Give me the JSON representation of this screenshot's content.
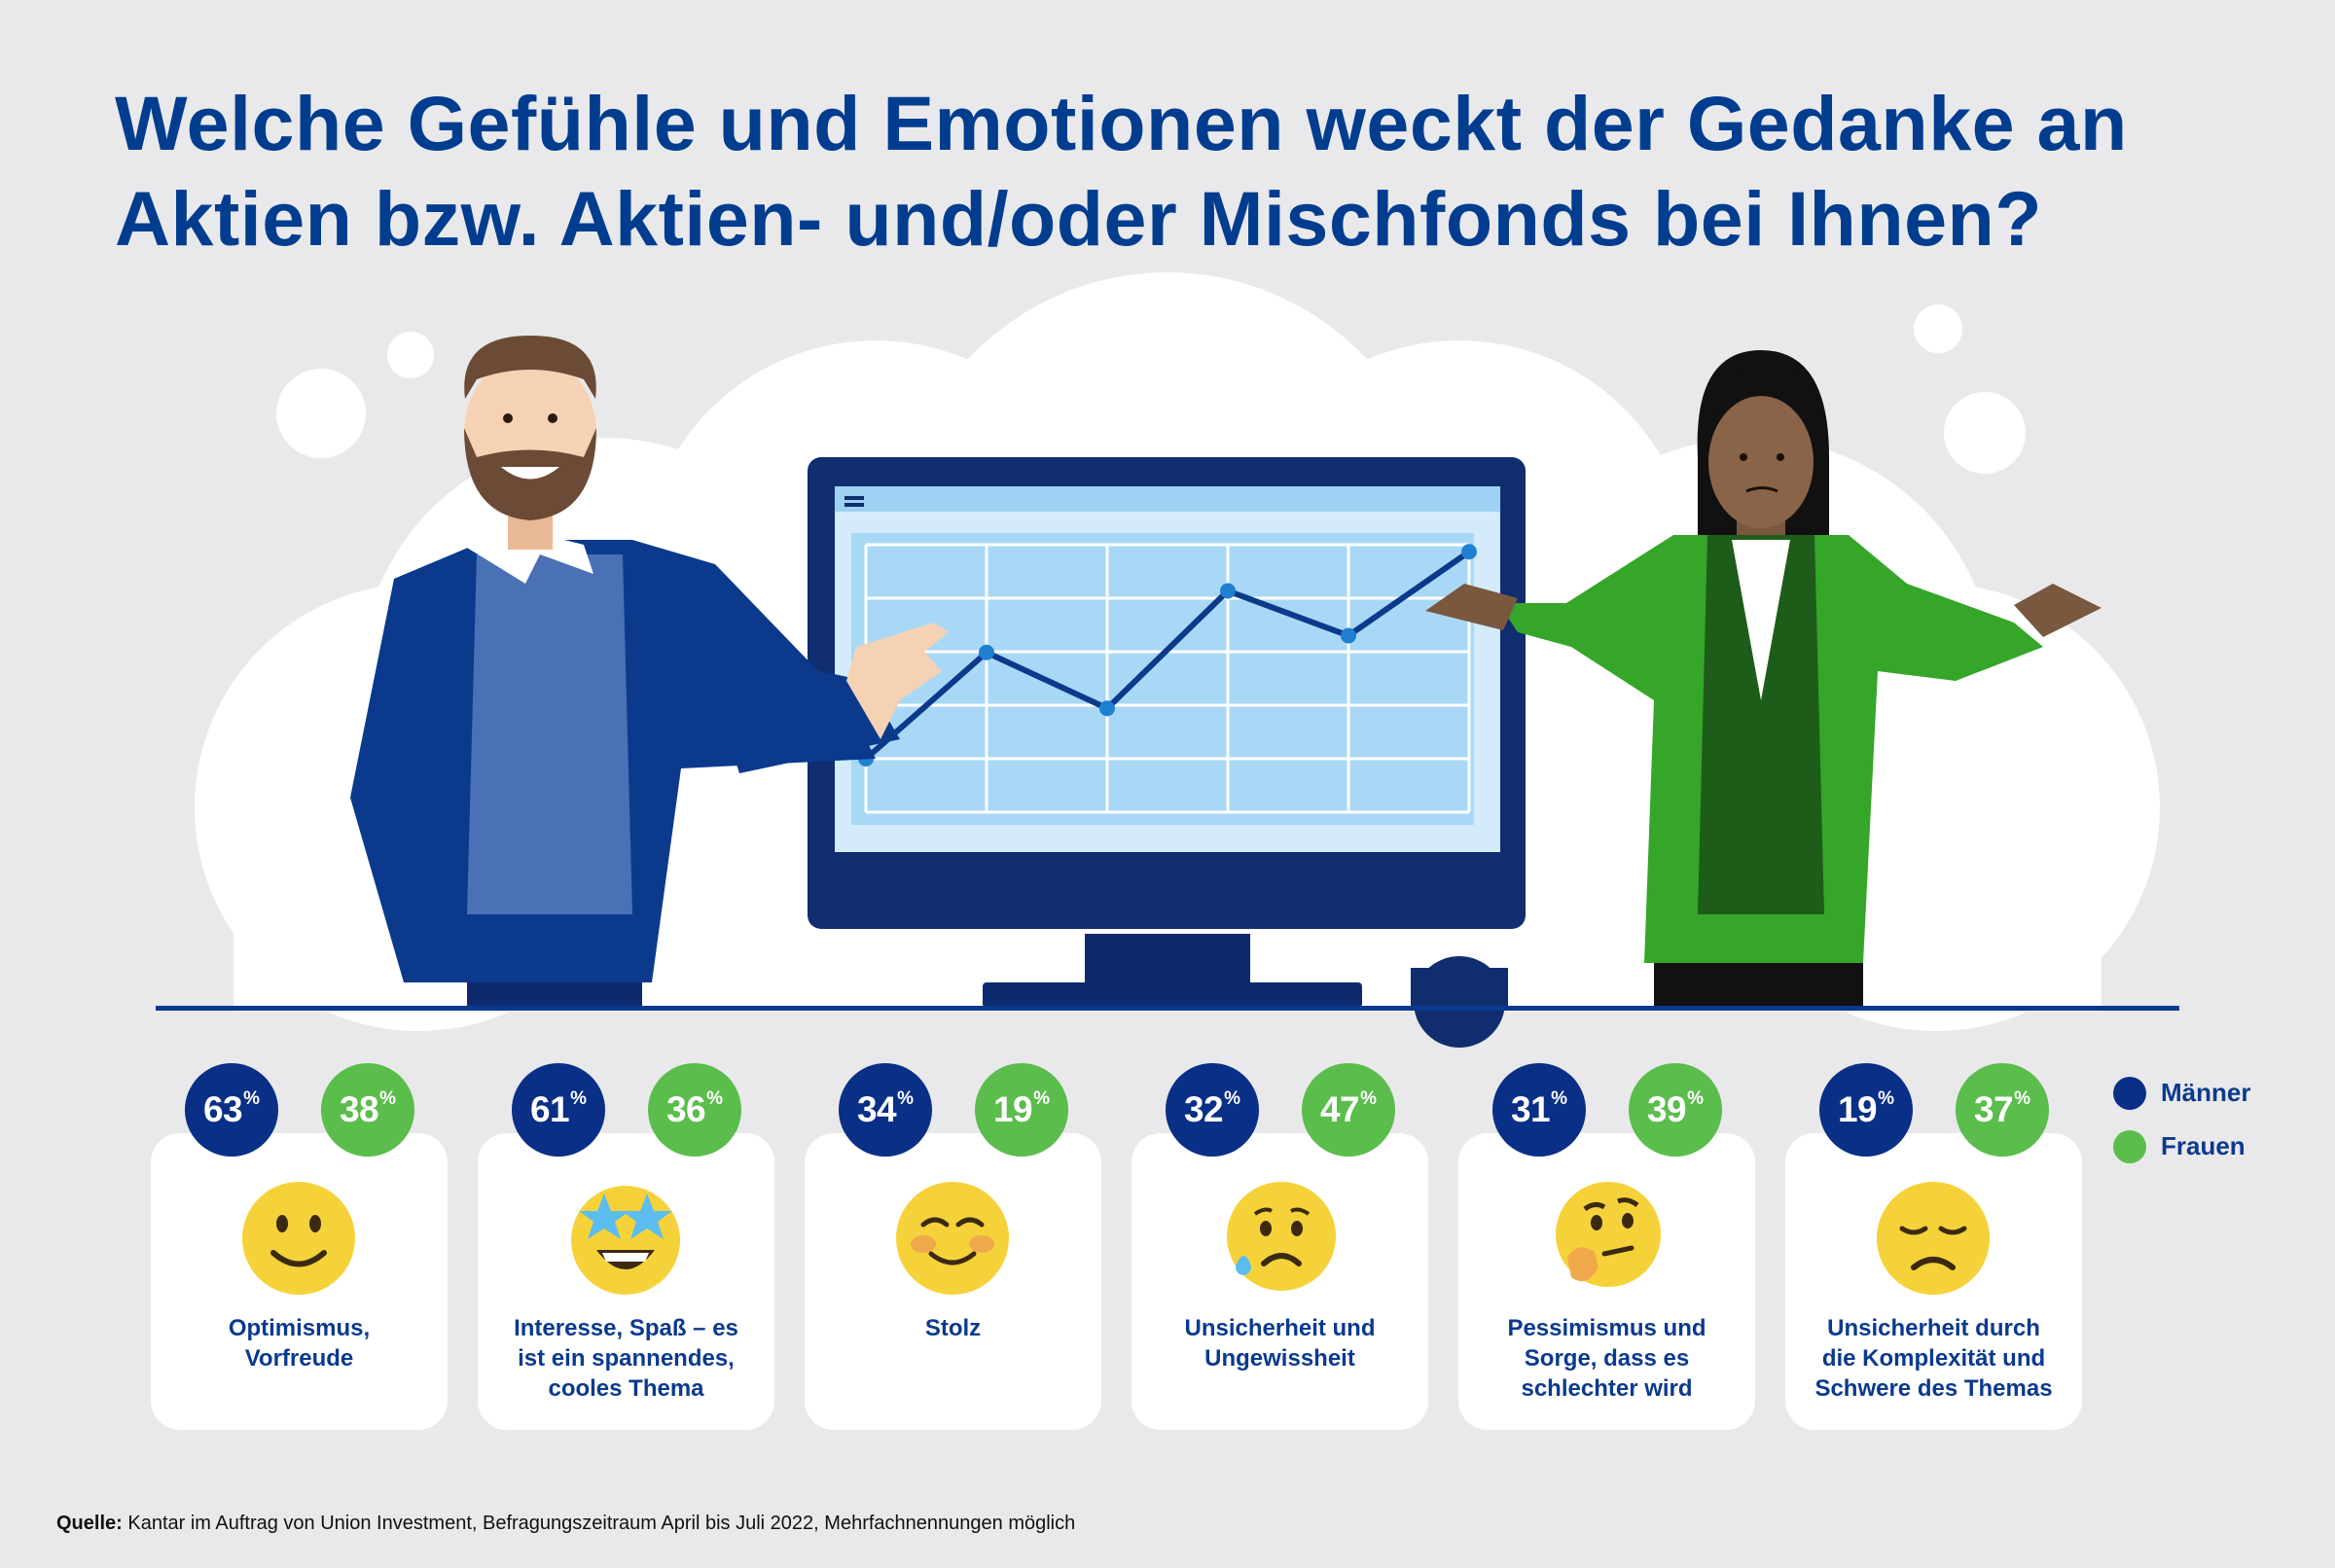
{
  "title": {
    "line1": "Welche Gefühle und Emotionen weckt der Gedanke an",
    "line2": "Aktien bzw. Aktien- und/oder Mischfonds bei Ihnen?"
  },
  "colors": {
    "men": "#0a2f86",
    "women": "#5bbd4c",
    "title": "#003d8f"
  },
  "chart_data": {
    "type": "bar",
    "title": "Welche Gefühle und Emotionen weckt der Gedanke an Aktien bzw. Aktien- und/oder Mischfonds bei Ihnen?",
    "unit": "%",
    "categories": [
      "Optimismus, Vorfreude",
      "Interesse, Spaß – es ist ein spannendes, cooles Thema",
      "Stolz",
      "Unsicherheit und Ungewissheit",
      "Pessimismus und Sorge, dass es schlechter wird",
      "Unsicherheit durch die Komplexität und Schwere des Themas"
    ],
    "series": [
      {
        "name": "Männer",
        "values": [
          63,
          61,
          34,
          32,
          31,
          19
        ]
      },
      {
        "name": "Frauen",
        "values": [
          38,
          36,
          19,
          47,
          39,
          37
        ]
      }
    ]
  },
  "cards": [
    {
      "lines": [
        "Optimismus,",
        "Vorfreude"
      ],
      "emoji": "slightly-smiling-face-icon",
      "men": "63",
      "women": "38"
    },
    {
      "lines": [
        "Interesse, Spaß – es",
        "ist ein spannendes,",
        "cooles Thema"
      ],
      "emoji": "star-struck-face-icon",
      "men": "61",
      "women": "36"
    },
    {
      "lines": [
        "Stolz"
      ],
      "emoji": "smiling-face-icon",
      "men": "34",
      "women": "19"
    },
    {
      "lines": [
        "Unsicherheit und",
        "Ungewissheit"
      ],
      "emoji": "anxious-sweat-face-icon",
      "men": "32",
      "women": "47"
    },
    {
      "lines": [
        "Pessimismus und",
        "Sorge, dass es",
        "schlechter wird"
      ],
      "emoji": "thinking-face-icon",
      "men": "31",
      "women": "39"
    },
    {
      "lines": [
        "Unsicherheit durch",
        "die Komplexität und",
        "Schwere des Themas"
      ],
      "emoji": "disappointed-face-icon",
      "men": "19",
      "women": "37"
    }
  ],
  "percent_sign": "%",
  "legend": {
    "men": "Männer",
    "women": "Frauen"
  },
  "source": {
    "label": "Quelle:",
    "text": " Kantar im Auftrag von Union Investment, Befragungszeitraum April bis Juli 2022, Mehrfachnennungen möglich"
  },
  "monitor_chart": {
    "points": [
      0,
      1.9,
      0.9,
      3.0,
      2.2,
      3.7
    ]
  }
}
